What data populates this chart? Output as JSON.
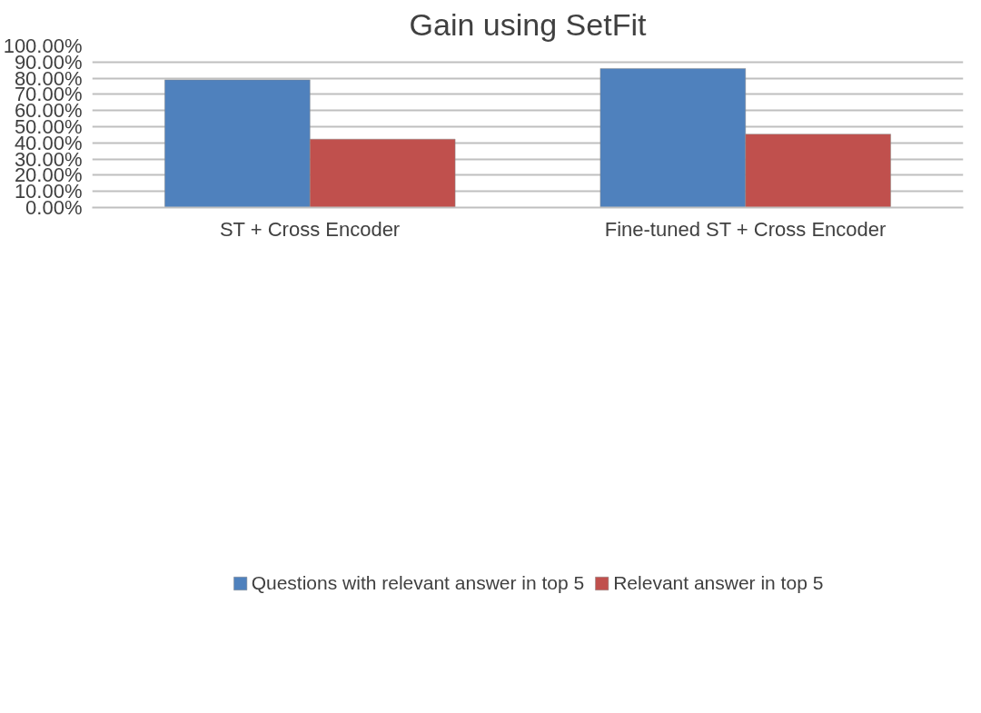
{
  "chart_data": {
    "type": "bar",
    "title": "Gain using SetFit",
    "categories": [
      "ST + Cross Encoder",
      "Fine-tuned ST + Cross Encoder"
    ],
    "series": [
      {
        "name": "Questions with relevant answer in top 5",
        "color": "#4f81bd",
        "values": [
          79,
          86
        ]
      },
      {
        "name": "Relevant answer in top 5",
        "color": "#c0504d",
        "values": [
          42.3,
          45.4
        ]
      }
    ],
    "ylim": [
      0,
      100
    ],
    "yticks": [
      {
        "value": 0,
        "label": "0.00%"
      },
      {
        "value": 10,
        "label": "10.00%"
      },
      {
        "value": 20,
        "label": "20.00%"
      },
      {
        "value": 30,
        "label": "30.00%"
      },
      {
        "value": 40,
        "label": "40.00%"
      },
      {
        "value": 50,
        "label": "50.00%"
      },
      {
        "value": 60,
        "label": "60.00%"
      },
      {
        "value": 70,
        "label": "70.00%"
      },
      {
        "value": 80,
        "label": "80.00%"
      },
      {
        "value": 90,
        "label": "90.00%"
      },
      {
        "value": 100,
        "label": "100.00%"
      }
    ],
    "grid": "y",
    "legend": "bottom"
  }
}
